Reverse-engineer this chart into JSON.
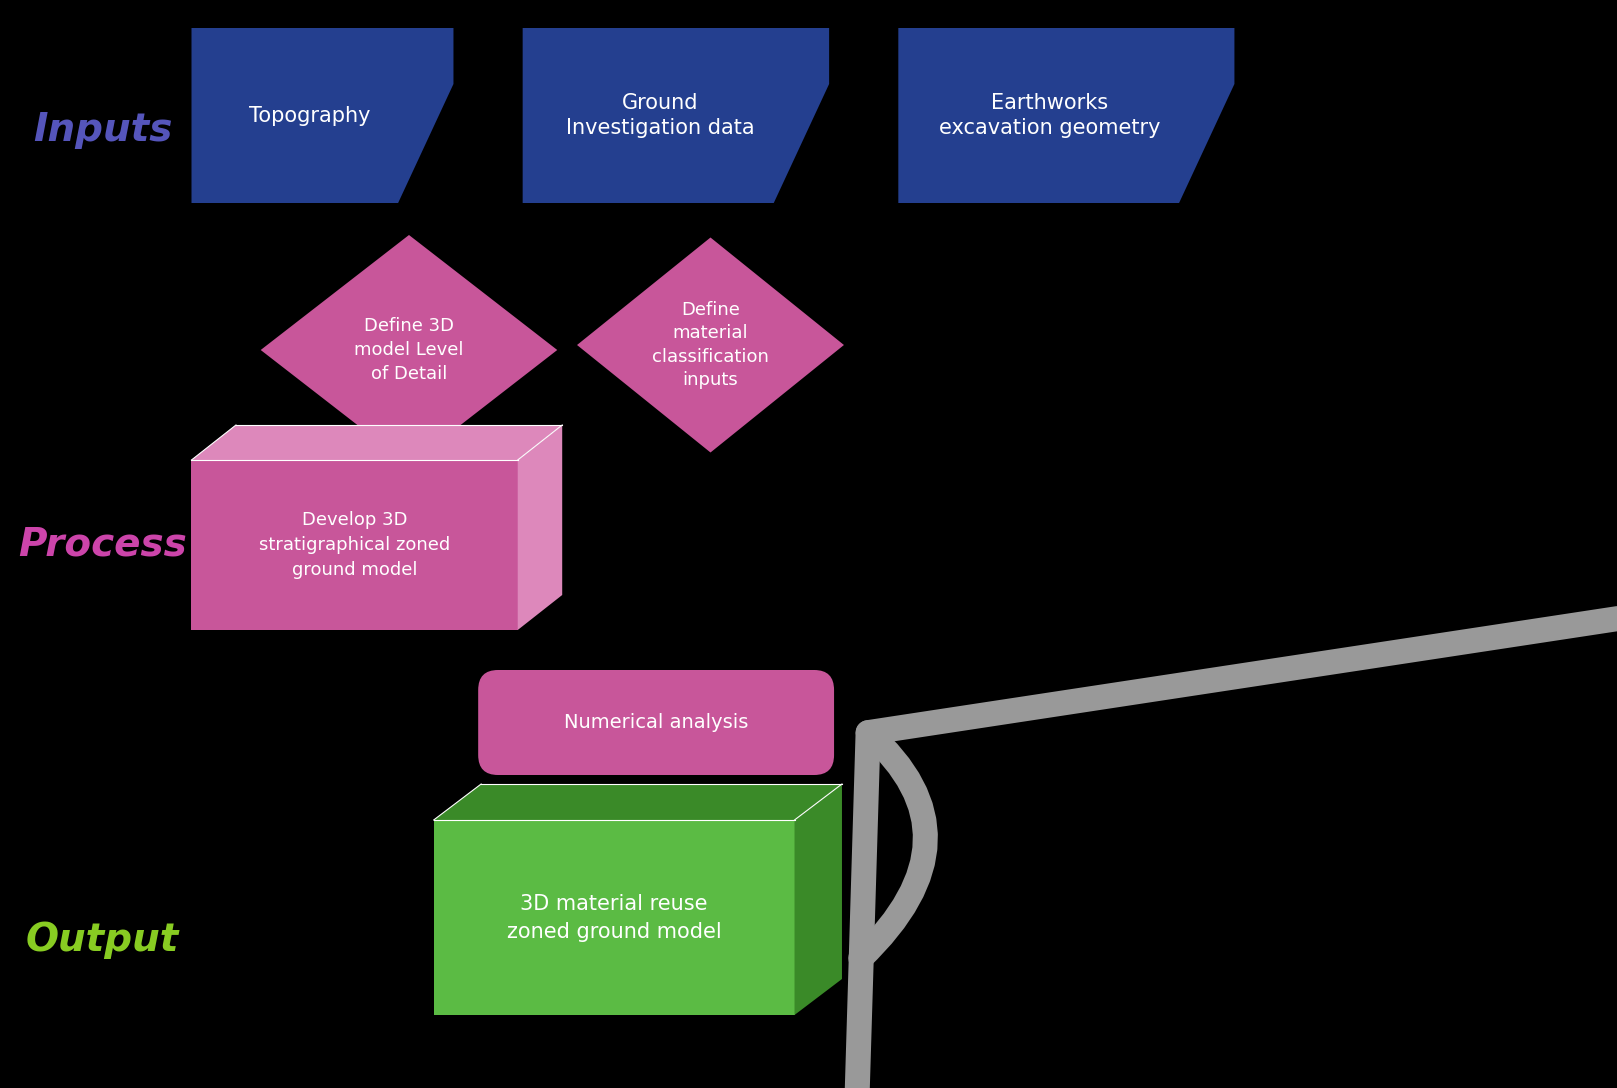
{
  "bg_color": "#000000",
  "blue_dark": "#243F8F",
  "pink": "#C8569A",
  "pink_light": "#DD88BB",
  "green": "#5BBB44",
  "green_dark": "#3A8A28",
  "white": "#FFFFFF",
  "gray_arrow": "#999999",
  "label_inputs_color": "#5555BB",
  "label_process_color": "#CC44AA",
  "label_output_color": "#88CC22",
  "inputs_label": "Inputs",
  "process_label": "Process",
  "output_label": "Output",
  "box1_text": "Topography",
  "box2_text": "Ground\nInvestigation data",
  "box3_text": "Earthworks\nexcavation geometry",
  "diamond1_text": "Define 3D\nmodel Level\nof Detail",
  "diamond2_text": "Define\nmaterial\nclassification\ninputs",
  "process_text": "Develop 3D\nstratigraphical zoned\nground model",
  "numerical_text": "Numerical analysis",
  "output_text": "3D material reuse\nzoned ground model",
  "fig_w": 16.17,
  "fig_h": 10.88,
  "dpi": 100
}
